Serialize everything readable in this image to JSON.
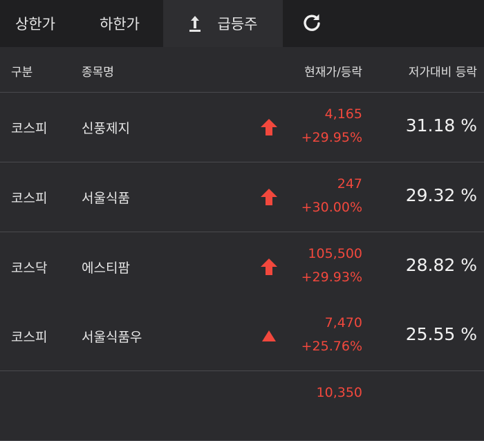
{
  "tabs": [
    {
      "label": "상한가",
      "active": false
    },
    {
      "label": "하한가",
      "active": false
    },
    {
      "label": "급등주",
      "active": true,
      "icon": "upload-arrow-icon"
    },
    {
      "label": "",
      "icon": "refresh-icon"
    }
  ],
  "header": {
    "gubun": "구분",
    "name": "종목명",
    "price_change": "현재가/등락",
    "low_rate": "저가대비 등락"
  },
  "rows": [
    {
      "market": "코스피",
      "name": "신풍제지",
      "icon": "bold-up-arrow-icon",
      "price": "4,165",
      "change": "+29.95%",
      "low_rate": "31.18 %"
    },
    {
      "market": "코스피",
      "name": "서울식품",
      "icon": "bold-up-arrow-icon",
      "price": "247",
      "change": "+30.00%",
      "low_rate": "29.32 %"
    },
    {
      "market": "코스닥",
      "name": "에스티팜",
      "icon": "bold-up-arrow-icon",
      "price": "105,500",
      "change": "+29.93%",
      "low_rate": "28.82 %"
    },
    {
      "market": "코스피",
      "name": "서울식품우",
      "icon": "up-triangle-icon",
      "price": "7,470",
      "change": "+25.76%",
      "low_rate": "25.55 %"
    },
    {
      "price": "10,350"
    }
  ],
  "colors": {
    "up": "#f2483d",
    "background": "#1f1f21",
    "row": "#2b2b2e"
  }
}
